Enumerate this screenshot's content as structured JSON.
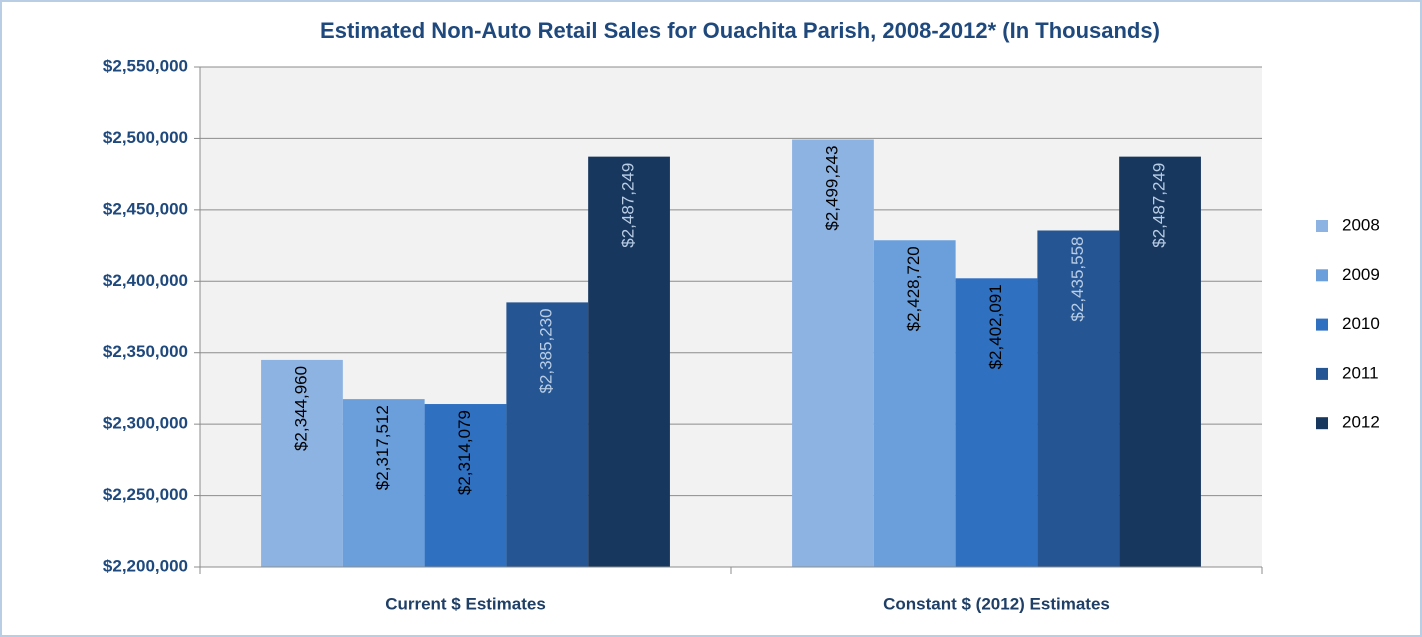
{
  "chart_data": {
    "type": "bar",
    "title": "Estimated Non-Auto Retail Sales for Ouachita Parish, 2008-2012* (In Thousands)",
    "categories": [
      "Current $ Estimates",
      "Constant $ (2012) Estimates"
    ],
    "series": [
      {
        "name": "2008",
        "color": "#8db3e2",
        "label_color": "#000000",
        "values": [
          2344960,
          2499243
        ],
        "value_labels": [
          "$2,344,960",
          "$2,499,243"
        ]
      },
      {
        "name": "2009",
        "color": "#6a9fdc",
        "label_color": "#000000",
        "values": [
          2317512,
          2428720
        ],
        "value_labels": [
          "$2,317,512",
          "$2,428,720"
        ]
      },
      {
        "name": "2010",
        "color": "#2f70c1",
        "label_color": "#000000",
        "values": [
          2314079,
          2402091
        ],
        "value_labels": [
          "$2,314,079",
          "$2,402,091"
        ]
      },
      {
        "name": "2011",
        "color": "#255592",
        "label_color": "#b9cde5",
        "values": [
          2385230,
          2435558
        ],
        "value_labels": [
          "$2,385,230",
          "$2,435,558"
        ]
      },
      {
        "name": "2012",
        "color": "#17375e",
        "label_color": "#b9cde5",
        "values": [
          2487249,
          2487249
        ],
        "value_labels": [
          "$2,487,249",
          "$2,487,249"
        ]
      }
    ],
    "ylim": [
      2200000,
      2550000
    ],
    "yticks": [
      {
        "value": 2200000,
        "label": "$2,200,000"
      },
      {
        "value": 2250000,
        "label": "$2,250,000"
      },
      {
        "value": 2300000,
        "label": "$2,300,000"
      },
      {
        "value": 2350000,
        "label": "$2,350,000"
      },
      {
        "value": 2400000,
        "label": "$2,400,000"
      },
      {
        "value": 2450000,
        "label": "$2,450,000"
      },
      {
        "value": 2500000,
        "label": "$2,500,000"
      },
      {
        "value": 2550000,
        "label": "$2,550,000"
      }
    ],
    "grid": true,
    "legend": "right"
  }
}
